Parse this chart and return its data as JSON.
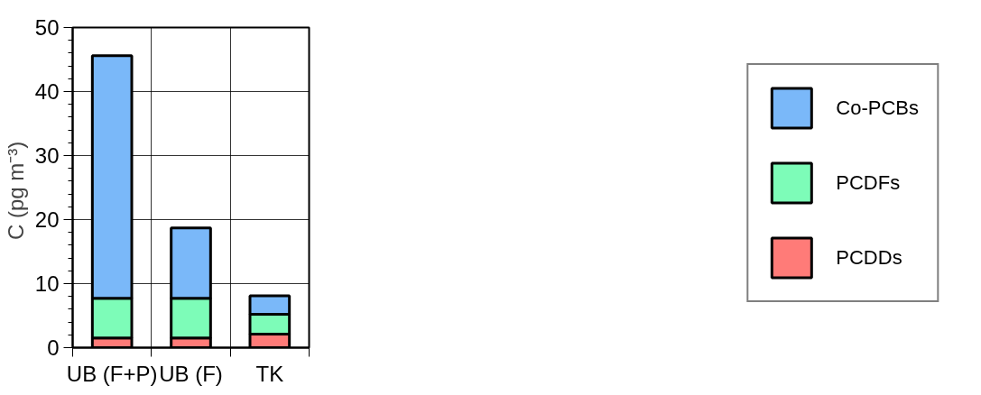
{
  "chart_data": {
    "type": "bar",
    "stacked": true,
    "ylabel": "C  (pg m⁻³)",
    "categories": [
      "UB (F+P)",
      "UB (F)",
      "TK"
    ],
    "series": [
      {
        "name": "PCDDs",
        "color": "#ff7b78",
        "values": [
          1.5,
          1.5,
          2.1
        ]
      },
      {
        "name": "PCDFs",
        "color": "#7dfcb8",
        "values": [
          6.2,
          6.2,
          3.1
        ]
      },
      {
        "name": "Co-PCBs",
        "color": "#7ab8f9",
        "values": [
          37.9,
          11.0,
          2.9
        ]
      }
    ],
    "ylim": [
      0,
      50
    ],
    "yticks": [
      0,
      10,
      20,
      30,
      40,
      50
    ],
    "grid": true,
    "legend": "right"
  }
}
